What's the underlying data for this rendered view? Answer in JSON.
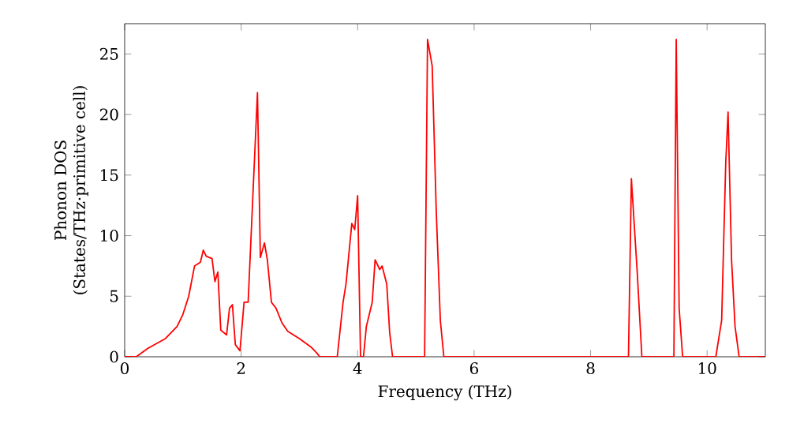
{
  "chart_data": {
    "type": "line",
    "xlabel": "Frequency (THz)",
    "ylabel": "Phonon DOS\n(States/THz·primitive cell)",
    "xlim": [
      0,
      11
    ],
    "ylim": [
      0,
      27.5
    ],
    "xticks": [
      0,
      2,
      4,
      6,
      8,
      10
    ],
    "yticks": [
      0,
      5,
      10,
      15,
      20,
      25
    ],
    "marker": "none",
    "line_style": "solid",
    "series": [
      {
        "color": "#ff0000",
        "x": [
          0,
          0.2,
          0.4,
          0.7,
          0.9,
          1.0,
          1.1,
          1.2,
          1.3,
          1.35,
          1.4,
          1.5,
          1.55,
          1.6,
          1.65,
          1.75,
          1.8,
          1.85,
          1.9,
          1.98,
          2.05,
          2.12,
          2.28,
          2.33,
          2.4,
          2.45,
          2.52,
          2.6,
          2.7,
          2.8,
          3.0,
          3.2,
          3.3,
          3.35,
          3.65,
          3.75,
          3.8,
          3.9,
          3.95,
          4.0,
          4.05,
          4.1,
          4.15,
          4.25,
          4.3,
          4.38,
          4.42,
          4.5,
          4.55,
          4.6,
          5.15,
          5.2,
          5.28,
          5.35,
          5.42,
          5.48,
          8.65,
          8.7,
          8.8,
          8.88,
          9.43,
          9.47,
          9.52,
          9.58,
          10.15,
          10.25,
          10.32,
          10.36,
          10.42,
          10.48,
          10.55,
          11
        ],
        "values": [
          0,
          0,
          0.7,
          1.5,
          2.5,
          3.5,
          5,
          7.5,
          7.8,
          8.8,
          8.3,
          8.1,
          6.2,
          7,
          2.2,
          1.8,
          4,
          4.3,
          1,
          0.5,
          4.5,
          4.5,
          21.8,
          8.2,
          9.4,
          8,
          4.5,
          4,
          2.8,
          2.1,
          1.5,
          0.8,
          0.3,
          0,
          0,
          4.5,
          6,
          11,
          10.5,
          13.3,
          0,
          0,
          2.5,
          4.5,
          8,
          7.2,
          7.5,
          6,
          2,
          0,
          0,
          26.2,
          24,
          12,
          3,
          0,
          0,
          14.7,
          7,
          0,
          0,
          26.2,
          4,
          0,
          0,
          3,
          16,
          20.2,
          8,
          2.5,
          0,
          0
        ]
      }
    ]
  }
}
